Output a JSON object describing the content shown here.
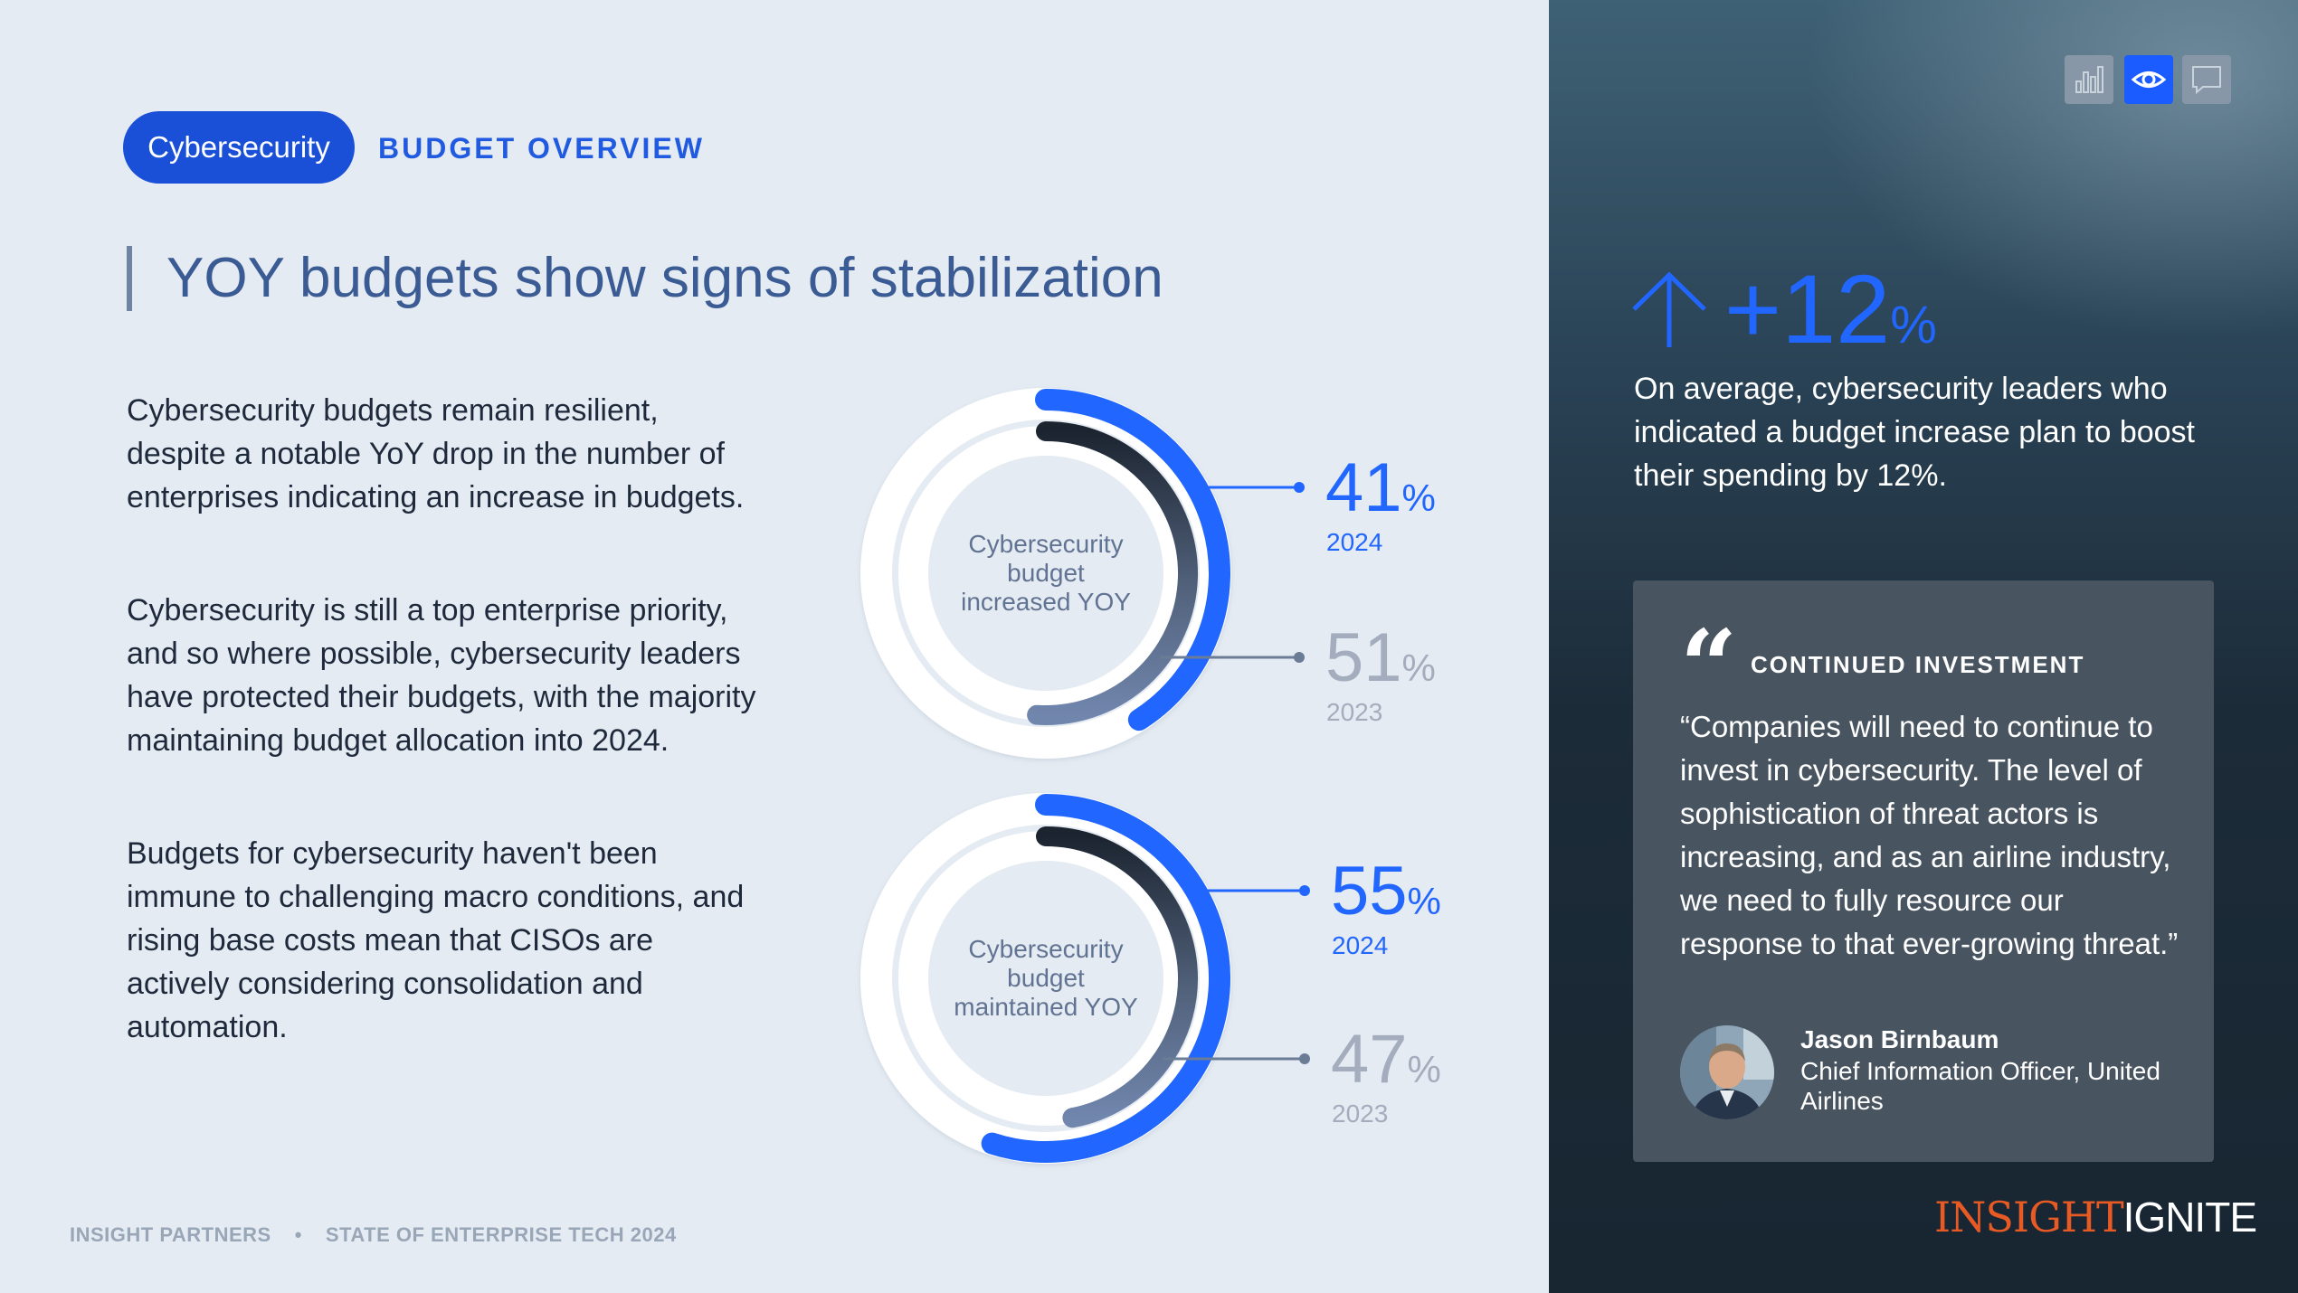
{
  "header": {
    "tag": "Cybersecurity",
    "section": "BUDGET OVERVIEW",
    "title": "YOY budgets show signs of stabilization"
  },
  "body": {
    "paragraphs": [
      "Cybersecurity budgets remain resilient, despite a notable YoY drop in the number of enterprises indicating an increase in budgets.",
      "Cybersecurity is still a top enterprise priority, and so where possible, cybersecurity leaders have protected their budgets, with the majority maintaining budget allocation into 2024.",
      "Budgets for cybersecurity haven't been immune to challenging macro conditions, and rising base costs mean that CISOs are actively considering consolidation and automation."
    ]
  },
  "chart_data": [
    {
      "type": "donut",
      "center_label": [
        "Cybersecurity",
        "budget",
        "increased YOY"
      ],
      "series": [
        {
          "name": "2024",
          "value": 41,
          "unit": "%"
        },
        {
          "name": "2023",
          "value": 51,
          "unit": "%"
        }
      ]
    },
    {
      "type": "donut",
      "center_label": [
        "Cybersecurity",
        "budget",
        "maintained YOY"
      ],
      "series": [
        {
          "name": "2024",
          "value": 55,
          "unit": "%"
        },
        {
          "name": "2023",
          "value": 47,
          "unit": "%"
        }
      ]
    }
  ],
  "toolbar": {
    "icons": [
      "bar-chart-icon",
      "eye-icon",
      "comment-icon"
    ],
    "active": "eye-icon"
  },
  "highlight": {
    "value": "+12",
    "unit": "%",
    "text": "On average, cybersecurity leaders who indicated a budget increase plan to boost their spending by 12%."
  },
  "quote": {
    "heading": "CONTINUED INVESTMENT",
    "text": "“Companies will need to continue to invest in cybersecurity. The level of sophistication of threat actors is increasing, and as an airline industry, we need to fully resource our response to that ever-growing threat.”",
    "name": "Jason Birnbaum",
    "role": "Chief Information Officer, United Airlines"
  },
  "footer": {
    "left": "INSIGHT PARTNERS",
    "right": "STATE OF ENTERPRISE TECH 2024"
  },
  "brand": {
    "part1": "INSIGHT",
    "part2": "IGNITE"
  },
  "colors": {
    "accent": "#2166ff",
    "pill": "#1a4fd8",
    "ring_2023_dark": "#1c2430",
    "ring_2023_light": "#6d81a8",
    "muted": "#a4adbd",
    "brand_orange": "#e85a24"
  }
}
